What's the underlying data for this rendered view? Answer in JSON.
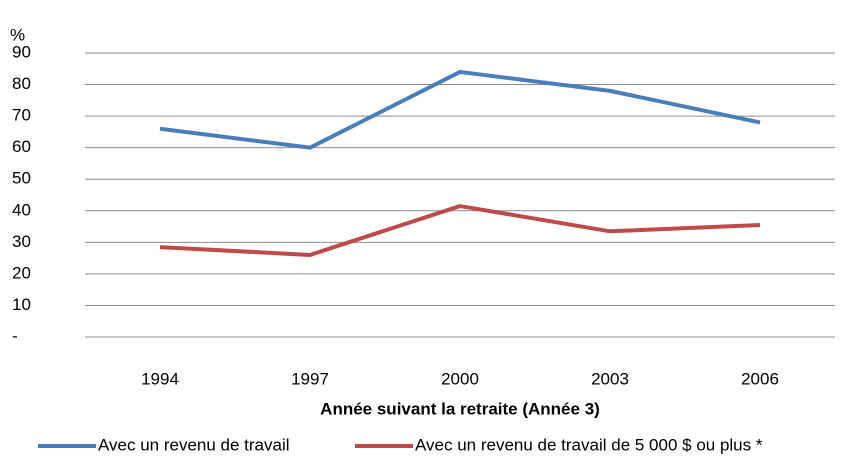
{
  "chart_data": {
    "type": "line",
    "ylabel": "%",
    "xlabel": "Année suivant la retraite (Année 3)",
    "categories": [
      "1994",
      "1997",
      "2000",
      "2003",
      "2006"
    ],
    "series": [
      {
        "name": "Avec un revenu de travail",
        "color": "#4a7ebb",
        "values": [
          66,
          60,
          84,
          78,
          68
        ]
      },
      {
        "name": "Avec un revenu de travail de 5 000 $ ou plus *",
        "color": "#be4b48",
        "values": [
          28.5,
          26,
          41.5,
          33.5,
          35.5
        ]
      }
    ],
    "ylim": [
      0,
      90
    ],
    "yticks": [
      {
        "value": 0,
        "label": "-"
      },
      10,
      20,
      30,
      40,
      50,
      60,
      70,
      80,
      90
    ],
    "grid": true,
    "legend": "bottom"
  }
}
